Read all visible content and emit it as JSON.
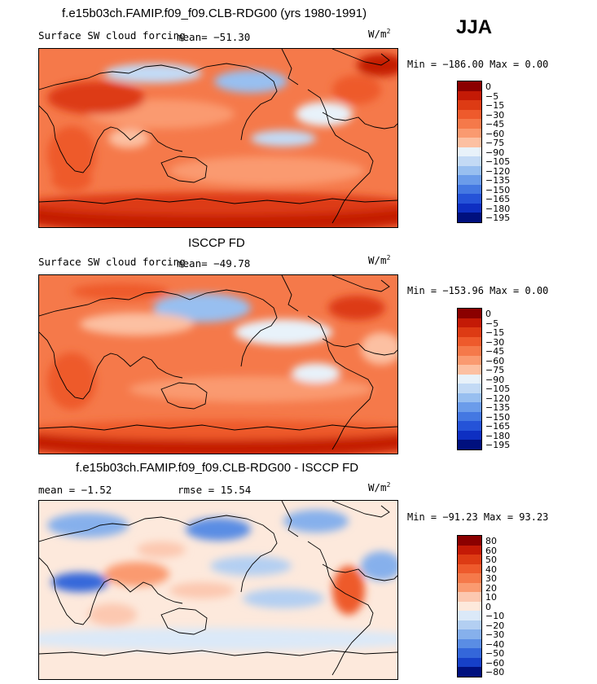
{
  "season": "JJA",
  "units": "W/m",
  "units_sup": "2",
  "panels": [
    {
      "title": "f.e15b03ch.FAMIP.f09_f09.CLB-RDG00 (yrs 1980-1991)",
      "subtitle": "Surface SW cloud forcing",
      "mean_text": "mean= −51.30",
      "minmax": "Min = −186.00  Max =    0.00",
      "palette": "neg",
      "levels": [
        "0",
        "−5",
        "−15",
        "−30",
        "−45",
        "−60",
        "−75",
        "−90",
        "−105",
        "−120",
        "−135",
        "−150",
        "−165",
        "−180",
        "−195"
      ]
    },
    {
      "title": "ISCCP FD",
      "subtitle": "Surface SW cloud forcing",
      "mean_text": "mean= −49.78",
      "minmax": "Min = −153.96  Max =    0.00",
      "palette": "neg",
      "levels": [
        "0",
        "−5",
        "−15",
        "−30",
        "−45",
        "−60",
        "−75",
        "−90",
        "−105",
        "−120",
        "−135",
        "−150",
        "−165",
        "−180",
        "−195"
      ]
    },
    {
      "title": "f.e15b03ch.FAMIP.f09_f09.CLB-RDG00 - ISCCP FD",
      "mean_text": "mean =   −1.52",
      "rmse_text": "rmse =   15.54",
      "minmax": "Min = −91.23  Max =   93.23",
      "palette": "diff",
      "levels": [
        "80",
        "60",
        "50",
        "40",
        "30",
        "20",
        "10",
        "0",
        "−10",
        "−20",
        "−30",
        "−40",
        "−50",
        "−60",
        "−80"
      ]
    }
  ],
  "colors": {
    "neg": [
      "#8b0000",
      "#c41a06",
      "#dd3b14",
      "#ee5a2c",
      "#f5794a",
      "#fa9a70",
      "#fcc0a2",
      "#e8f2fa",
      "#c3daf5",
      "#98bff0",
      "#6b9cea",
      "#4478e2",
      "#2553d8",
      "#0e2fc2",
      "#00107e"
    ],
    "diff": [
      "#8b0000",
      "#c41a06",
      "#dd3b14",
      "#ee5a2c",
      "#f5794a",
      "#fa9a70",
      "#fcc8b0",
      "#fde9dc",
      "#dbe9f8",
      "#b3cff2",
      "#86b0ec",
      "#5a8de4",
      "#3467da",
      "#1640c8",
      "#00107e"
    ]
  }
}
